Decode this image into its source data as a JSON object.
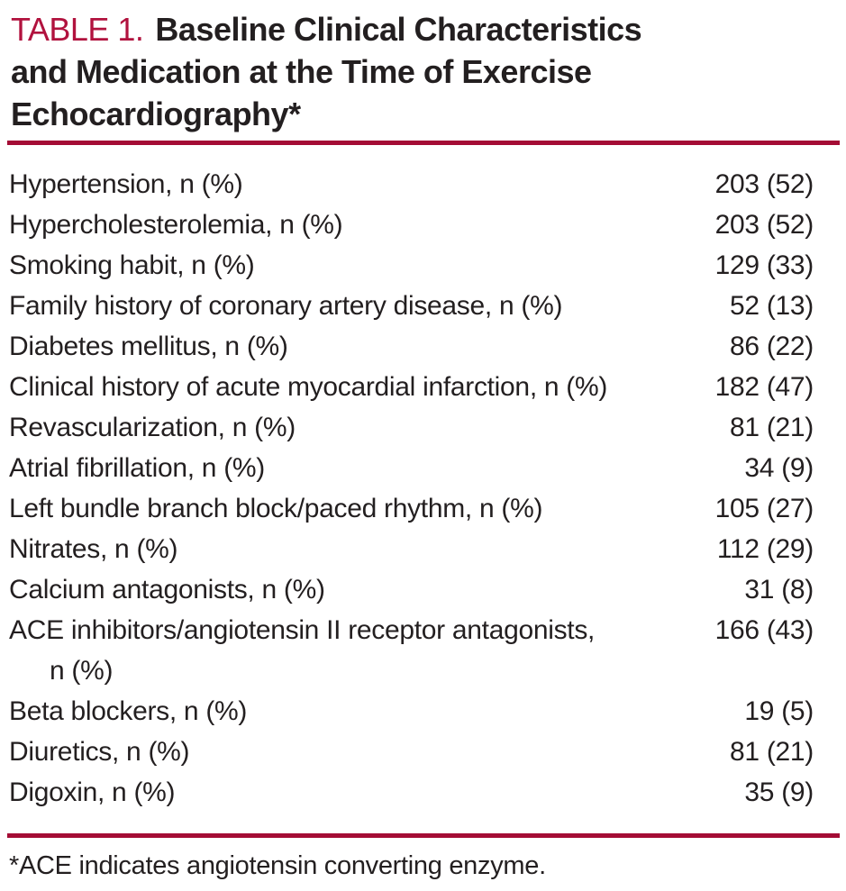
{
  "title": {
    "number": "TABLE 1.",
    "lines": [
      "Baseline Clinical Characteristics",
      "and Medication at the Time of Exercise",
      "Echocardiography*"
    ]
  },
  "table": {
    "rows": [
      {
        "label": "Hypertension, n (%)",
        "label2": "",
        "value": "203 (52)"
      },
      {
        "label": "Hypercholesterolemia, n (%)",
        "label2": "",
        "value": "203 (52)"
      },
      {
        "label": "Smoking habit, n (%)",
        "label2": "",
        "value": "129 (33)"
      },
      {
        "label": "Family history of coronary artery disease, n (%)",
        "label2": "",
        "value": "52 (13)"
      },
      {
        "label": "Diabetes mellitus, n (%)",
        "label2": "",
        "value": "86 (22)"
      },
      {
        "label": "Clinical history of acute myocardial infarction, n (%)",
        "label2": "",
        "value": "182 (47)"
      },
      {
        "label": "Revascularization, n (%)",
        "label2": "",
        "value": "81 (21)"
      },
      {
        "label": "Atrial fibrillation, n (%)",
        "label2": "",
        "value": "34 (9)"
      },
      {
        "label": "Left bundle branch block/paced rhythm, n (%)",
        "label2": "",
        "value": "105 (27)"
      },
      {
        "label": "Nitrates, n (%)",
        "label2": "",
        "value": "112 (29)"
      },
      {
        "label": "Calcium antagonists, n (%)",
        "label2": "",
        "value": "31 (8)"
      },
      {
        "label": "ACE inhibitors/angiotensin II receptor antagonists,",
        "label2": "n (%)",
        "value": "166 (43)"
      },
      {
        "label": "Beta blockers, n (%)",
        "label2": "",
        "value": "19 (5)"
      },
      {
        "label": "Diuretics, n (%)",
        "label2": "",
        "value": "81 (21)"
      },
      {
        "label": "Digoxin, n (%)",
        "label2": "",
        "value": "35 (9)"
      }
    ]
  },
  "footnote": "*ACE indicates angiotensin converting enzyme.",
  "colors": {
    "title_red": "#b1123e",
    "rule_red": "#a40c35",
    "text": "#231f20"
  }
}
